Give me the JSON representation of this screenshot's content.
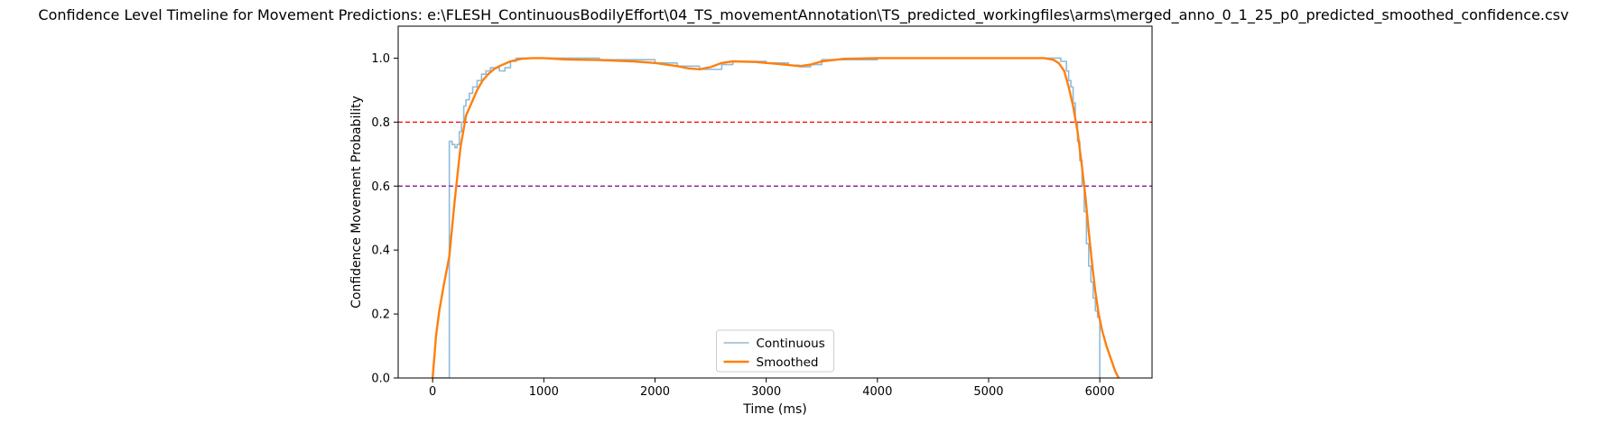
{
  "chart_data": {
    "type": "line",
    "title": "Confidence Level Timeline for Movement Predictions: e:\\FLESH_ContinuousBodilyEffort\\04_TS_movementAnnotation\\TS_predicted_workingfiles\\arms\\merged_anno_0_1_25_p0_predicted_smoothed_confidence.csv",
    "xlabel": "Time (ms)",
    "ylabel": "Confidence Movement Probability",
    "xlim": [
      -310,
      6470
    ],
    "ylim": [
      0,
      1.1
    ],
    "x_ticks": [
      0,
      1000,
      2000,
      3000,
      4000,
      5000,
      6000
    ],
    "x_tick_labels": [
      "0",
      "1000",
      "2000",
      "3000",
      "4000",
      "5000",
      "6000"
    ],
    "y_ticks": [
      0.0,
      0.2,
      0.4,
      0.6,
      0.8,
      1.0
    ],
    "y_tick_labels": [
      "0.0",
      "0.2",
      "0.4",
      "0.6",
      "0.8",
      "1.0"
    ],
    "grid": false,
    "legend_position": "lower center",
    "reference_lines": [
      {
        "y": 0.8,
        "color": "#ff0000",
        "style": "dashed"
      },
      {
        "y": 0.6,
        "color": "#800080",
        "style": "dashed"
      }
    ],
    "series": [
      {
        "name": "Continuous",
        "color": "#1f77b4",
        "alpha": 0.5,
        "step": true,
        "points": [
          [
            0,
            0
          ],
          [
            150,
            0
          ],
          [
            150,
            0.74
          ],
          [
            175,
            0.73
          ],
          [
            200,
            0.72
          ],
          [
            220,
            0.73
          ],
          [
            240,
            0.77
          ],
          [
            260,
            0.8
          ],
          [
            280,
            0.85
          ],
          [
            300,
            0.87
          ],
          [
            330,
            0.89
          ],
          [
            360,
            0.91
          ],
          [
            400,
            0.93
          ],
          [
            440,
            0.95
          ],
          [
            480,
            0.96
          ],
          [
            520,
            0.97
          ],
          [
            560,
            0.97
          ],
          [
            600,
            0.96
          ],
          [
            650,
            0.97
          ],
          [
            700,
            0.99
          ],
          [
            750,
            1.0
          ],
          [
            800,
            1.0
          ],
          [
            1000,
            1.0
          ],
          [
            1500,
            0.995
          ],
          [
            2000,
            0.985
          ],
          [
            2200,
            0.975
          ],
          [
            2400,
            0.965
          ],
          [
            2600,
            0.98
          ],
          [
            2700,
            0.99
          ],
          [
            3000,
            0.985
          ],
          [
            3200,
            0.978
          ],
          [
            3300,
            0.973
          ],
          [
            3400,
            0.98
          ],
          [
            3500,
            0.995
          ],
          [
            4000,
            1.0
          ],
          [
            5000,
            1.0
          ],
          [
            5500,
            1.0
          ],
          [
            5600,
            1.0
          ],
          [
            5650,
            0.99
          ],
          [
            5700,
            0.96
          ],
          [
            5720,
            0.93
          ],
          [
            5740,
            0.91
          ],
          [
            5760,
            0.86
          ],
          [
            5780,
            0.8
          ],
          [
            5800,
            0.74
          ],
          [
            5820,
            0.68
          ],
          [
            5840,
            0.6
          ],
          [
            5860,
            0.52
          ],
          [
            5880,
            0.42
          ],
          [
            5900,
            0.35
          ],
          [
            5920,
            0.3
          ],
          [
            5940,
            0.25
          ],
          [
            5960,
            0.21
          ],
          [
            5980,
            0.19
          ],
          [
            6000,
            0.18
          ],
          [
            6000,
            0.0
          ]
        ]
      },
      {
        "name": "Smoothed",
        "color": "#ff7f0e",
        "step": false,
        "points": [
          [
            0,
            0.0
          ],
          [
            30,
            0.13
          ],
          [
            60,
            0.21
          ],
          [
            100,
            0.29
          ],
          [
            150,
            0.38
          ],
          [
            200,
            0.56
          ],
          [
            250,
            0.72
          ],
          [
            300,
            0.82
          ],
          [
            350,
            0.86
          ],
          [
            400,
            0.9
          ],
          [
            450,
            0.93
          ],
          [
            500,
            0.95
          ],
          [
            550,
            0.965
          ],
          [
            600,
            0.975
          ],
          [
            700,
            0.99
          ],
          [
            800,
            0.998
          ],
          [
            900,
            1.0
          ],
          [
            1000,
            1.0
          ],
          [
            1200,
            0.996
          ],
          [
            1500,
            0.994
          ],
          [
            1800,
            0.99
          ],
          [
            2000,
            0.985
          ],
          [
            2200,
            0.975
          ],
          [
            2300,
            0.968
          ],
          [
            2400,
            0.965
          ],
          [
            2500,
            0.972
          ],
          [
            2600,
            0.985
          ],
          [
            2700,
            0.99
          ],
          [
            2900,
            0.988
          ],
          [
            3100,
            0.982
          ],
          [
            3300,
            0.975
          ],
          [
            3400,
            0.98
          ],
          [
            3500,
            0.99
          ],
          [
            3700,
            0.998
          ],
          [
            4000,
            1.0
          ],
          [
            5000,
            1.0
          ],
          [
            5500,
            1.0
          ],
          [
            5580,
            0.995
          ],
          [
            5630,
            0.985
          ],
          [
            5680,
            0.96
          ],
          [
            5720,
            0.91
          ],
          [
            5760,
            0.85
          ],
          [
            5800,
            0.77
          ],
          [
            5840,
            0.66
          ],
          [
            5870,
            0.57
          ],
          [
            5900,
            0.46
          ],
          [
            5930,
            0.36
          ],
          [
            5960,
            0.27
          ],
          [
            5990,
            0.2
          ],
          [
            6020,
            0.15
          ],
          [
            6060,
            0.1
          ],
          [
            6100,
            0.06
          ],
          [
            6140,
            0.02
          ],
          [
            6170,
            0.0
          ]
        ]
      }
    ]
  }
}
